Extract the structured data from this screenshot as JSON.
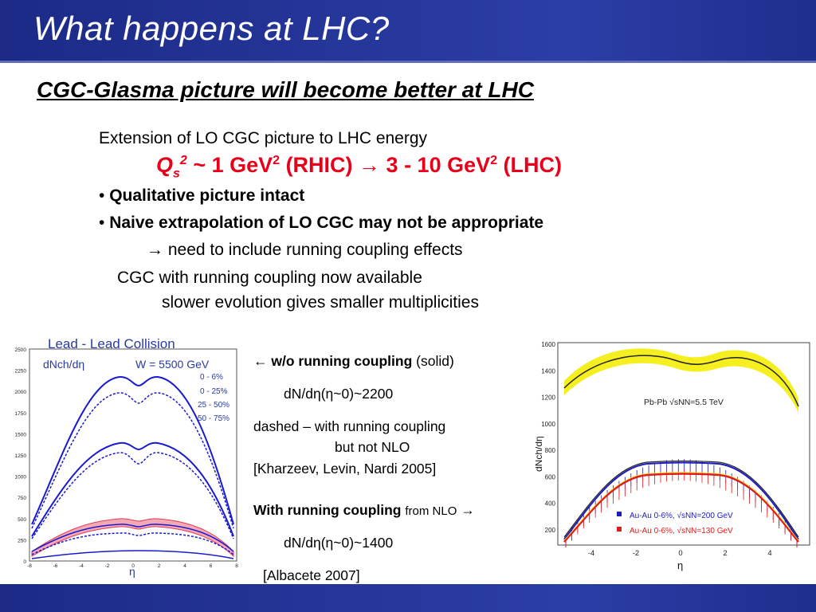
{
  "slide": {
    "title": "What happens at LHC?",
    "subtitle": "CGC-Glasma picture will become better at LHC"
  },
  "body": {
    "line1": "Extension of LO CGC picture to LHC energy",
    "qs": {
      "q": "Q",
      "s": "s",
      "sq": "2",
      "rest1": " ~ 1 GeV",
      "rest2": " (RHIC) ",
      "arrow": "→",
      "rest3": " 3 - 10 GeV",
      "rest4": " (LHC)"
    },
    "bullet1": "Qualitative picture intact",
    "bullet2": "Naive extrapolation of LO CGC may not be appropriate",
    "arrow_line": "→ need to include running coupling effects",
    "line_rc": "CGC with running coupling now available",
    "line_slow": "slower evolution gives smaller multiplicities"
  },
  "notes": {
    "n1_arrow": "←",
    "n1_bold": "w/o running coupling",
    "n1_rest": "(solid)",
    "n2": "dN/dη(η~0)~2200",
    "n3": "dashed – with running coupling",
    "n4": "but not NLO",
    "n5": "[Kharzeev, Levin, Nardi 2005]",
    "n6_bold": "With running coupling",
    "n6_small": "from NLO",
    "n6_arrow": "→",
    "n7": "dN/dη(η~0)~1400",
    "n8": "[Albacete 2007]"
  },
  "plot_left": {
    "heading": "Lead - Lead Collision",
    "ylabel": "dNch/dη",
    "energy": "W = 5500 GeV",
    "centralities": [
      "0 - 6%",
      "0 - 25%",
      "25 - 50%",
      "50 - 75%"
    ],
    "xlabel": "η",
    "yticks": [
      "2500",
      "2250",
      "2000",
      "1750",
      "1500",
      "1250",
      "1000",
      "750",
      "500",
      "250",
      "0"
    ],
    "xticks": [
      "-8",
      "-6",
      "-4",
      "-2",
      "0",
      "2",
      "4",
      "6",
      "8"
    ]
  },
  "plot_right": {
    "ylabel": "dNch/dη",
    "xlabel": "η",
    "pbpb_label": "Pb-Pb √sNN=5.5 TeV",
    "legend_au200": "Au-Au 0-6%, √sNN=200 GeV",
    "legend_au130": "Au-Au 0-6%, √sNN=130 GeV",
    "yticks": [
      "1600",
      "1400",
      "1200",
      "1000",
      "800",
      "600",
      "400",
      "200"
    ],
    "xticks": [
      "-4",
      "-2",
      "0",
      "2",
      "4"
    ]
  },
  "colors": {
    "title_bar": "#1c2a86",
    "red_text": "#e8001a",
    "curve_blue": "#1a1ad0",
    "band_yellow": "#f5ef1f",
    "band_pink": "#f4a9b5"
  }
}
